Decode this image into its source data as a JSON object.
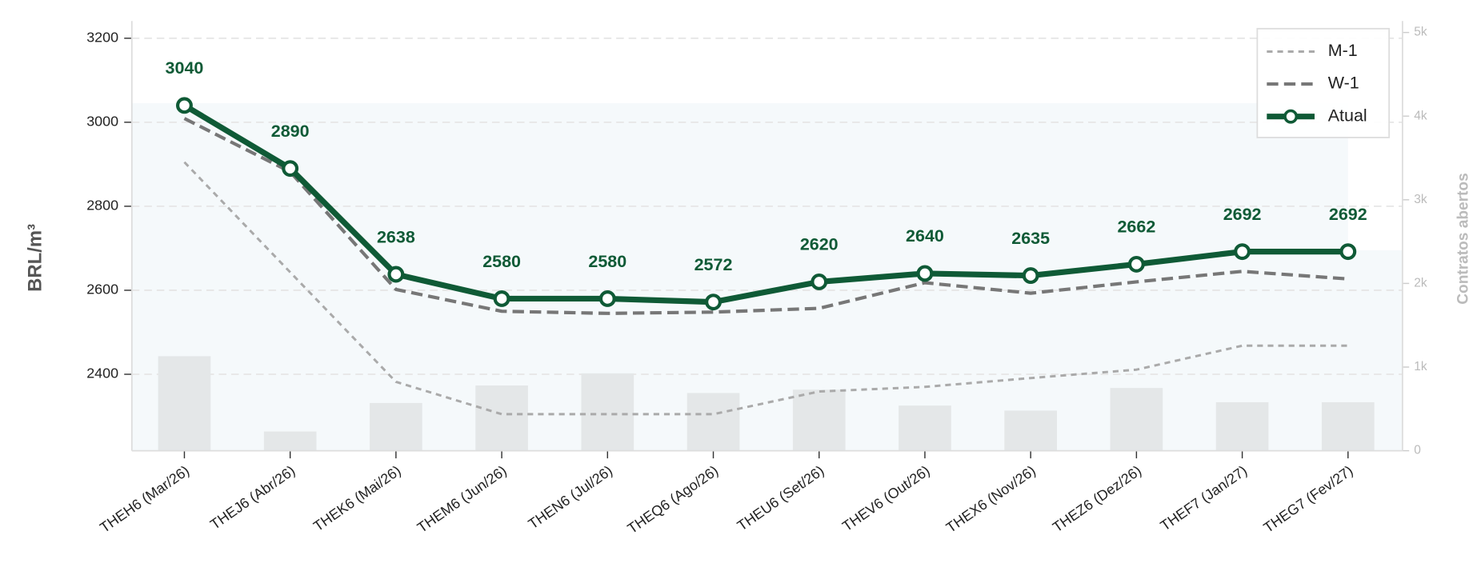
{
  "chart_data": {
    "type": "line",
    "y_label": "BRL/m³",
    "y2_label": "Contratos abertos",
    "categories": [
      "THEH6 (Mar/26)",
      "THEJ6 (Abr/26)",
      "THEK6 (Mai/26)",
      "THEM6 (Jun/26)",
      "THEN6 (Jul/26)",
      "THEQ6 (Ago/26)",
      "THEU6 (Set/26)",
      "THEV6 (Out/26)",
      "THEX6 (Nov/26)",
      "THEZ6 (Dez/26)",
      "THEF7 (Jan/27)",
      "THEG7 (Fev/27)"
    ],
    "series": [
      {
        "name": "M-1",
        "color": "#aaaaaa",
        "dash": "6 5",
        "width": 2.5,
        "values": [
          2905,
          2643,
          2382,
          2305,
          2305,
          2305,
          2359,
          2370,
          2391,
          2411,
          2468,
          2468
        ]
      },
      {
        "name": "W-1",
        "color": "#777777",
        "dash": "12 6",
        "width": 3.5,
        "values": [
          3009,
          2882,
          2602,
          2550,
          2545,
          2548,
          2557,
          2618,
          2593,
          2620,
          2645,
          2627
        ]
      },
      {
        "name": "Atual",
        "color": "#0f5a36",
        "width": 6,
        "markers": true,
        "data_labels": true,
        "values": [
          3040,
          2890,
          2638,
          2580,
          2580,
          2572,
          2620,
          2640,
          2635,
          2662,
          2692,
          2692
        ]
      }
    ],
    "bars": {
      "axis": "y2",
      "color": "#e4e7e8",
      "values": [
        1130,
        230,
        570,
        780,
        925,
        690,
        730,
        540,
        480,
        750,
        580,
        580
      ]
    },
    "ylim": [
      2218,
      3241
    ],
    "yticks": [
      2400,
      2600,
      2800,
      3000,
      3200
    ],
    "y2lim": [
      0,
      5137
    ],
    "y2ticks": [
      0,
      {
        "value": 1000,
        "label": "1k"
      },
      {
        "value": 2000,
        "label": "2k"
      },
      {
        "value": 3000,
        "label": "3k"
      },
      {
        "value": 4000,
        "label": "4k"
      },
      {
        "value": 5000,
        "label": "5k"
      }
    ],
    "grid": true,
    "legend": "upper right"
  }
}
